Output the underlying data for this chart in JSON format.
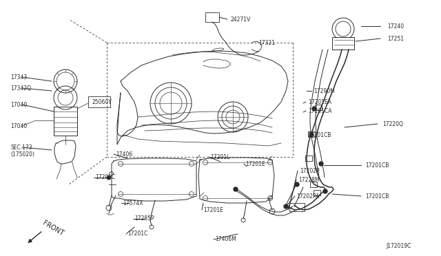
{
  "bg_color": "#ffffff",
  "line_color": "#2a2a2a",
  "fig_w": 6.4,
  "fig_h": 3.72,
  "dpi": 100,
  "labels": [
    [
      "24271V",
      335,
      28,
      "left"
    ],
    [
      "17321",
      375,
      62,
      "left"
    ],
    [
      "17290M",
      455,
      132,
      "left"
    ],
    [
      "17201EA",
      447,
      148,
      "left"
    ],
    [
      "17201CA",
      447,
      161,
      "left"
    ],
    [
      "17201CB",
      446,
      196,
      "left"
    ],
    [
      "17201CB",
      530,
      240,
      "left"
    ],
    [
      "17201CB",
      530,
      285,
      "left"
    ],
    [
      "17220Q",
      555,
      180,
      "left"
    ],
    [
      "17202P",
      435,
      248,
      "left"
    ],
    [
      "17228M",
      433,
      261,
      "left"
    ],
    [
      "17202PA",
      430,
      285,
      "left"
    ],
    [
      "17240",
      562,
      38,
      "left"
    ],
    [
      "17251",
      562,
      56,
      "left"
    ],
    [
      "17343",
      15,
      112,
      "left"
    ],
    [
      "17342Q",
      15,
      128,
      "left"
    ],
    [
      "17040",
      15,
      152,
      "left"
    ],
    [
      "25060Y",
      133,
      148,
      "left"
    ],
    [
      "17040",
      15,
      183,
      "left"
    ],
    [
      "SEC.173",
      15,
      214,
      "left"
    ],
    [
      "(175020)",
      15,
      224,
      "left"
    ],
    [
      "17406",
      168,
      224,
      "left"
    ],
    [
      "17201L",
      305,
      228,
      "left"
    ],
    [
      "17201E",
      356,
      238,
      "left"
    ],
    [
      "17201E",
      295,
      305,
      "left"
    ],
    [
      "17201C",
      138,
      258,
      "left"
    ],
    [
      "17201C",
      185,
      340,
      "left"
    ],
    [
      "17574X",
      178,
      295,
      "left"
    ],
    [
      "17285P",
      195,
      318,
      "left"
    ],
    [
      "17406M",
      312,
      348,
      "left"
    ],
    [
      "J172019C",
      560,
      358,
      "left"
    ]
  ]
}
